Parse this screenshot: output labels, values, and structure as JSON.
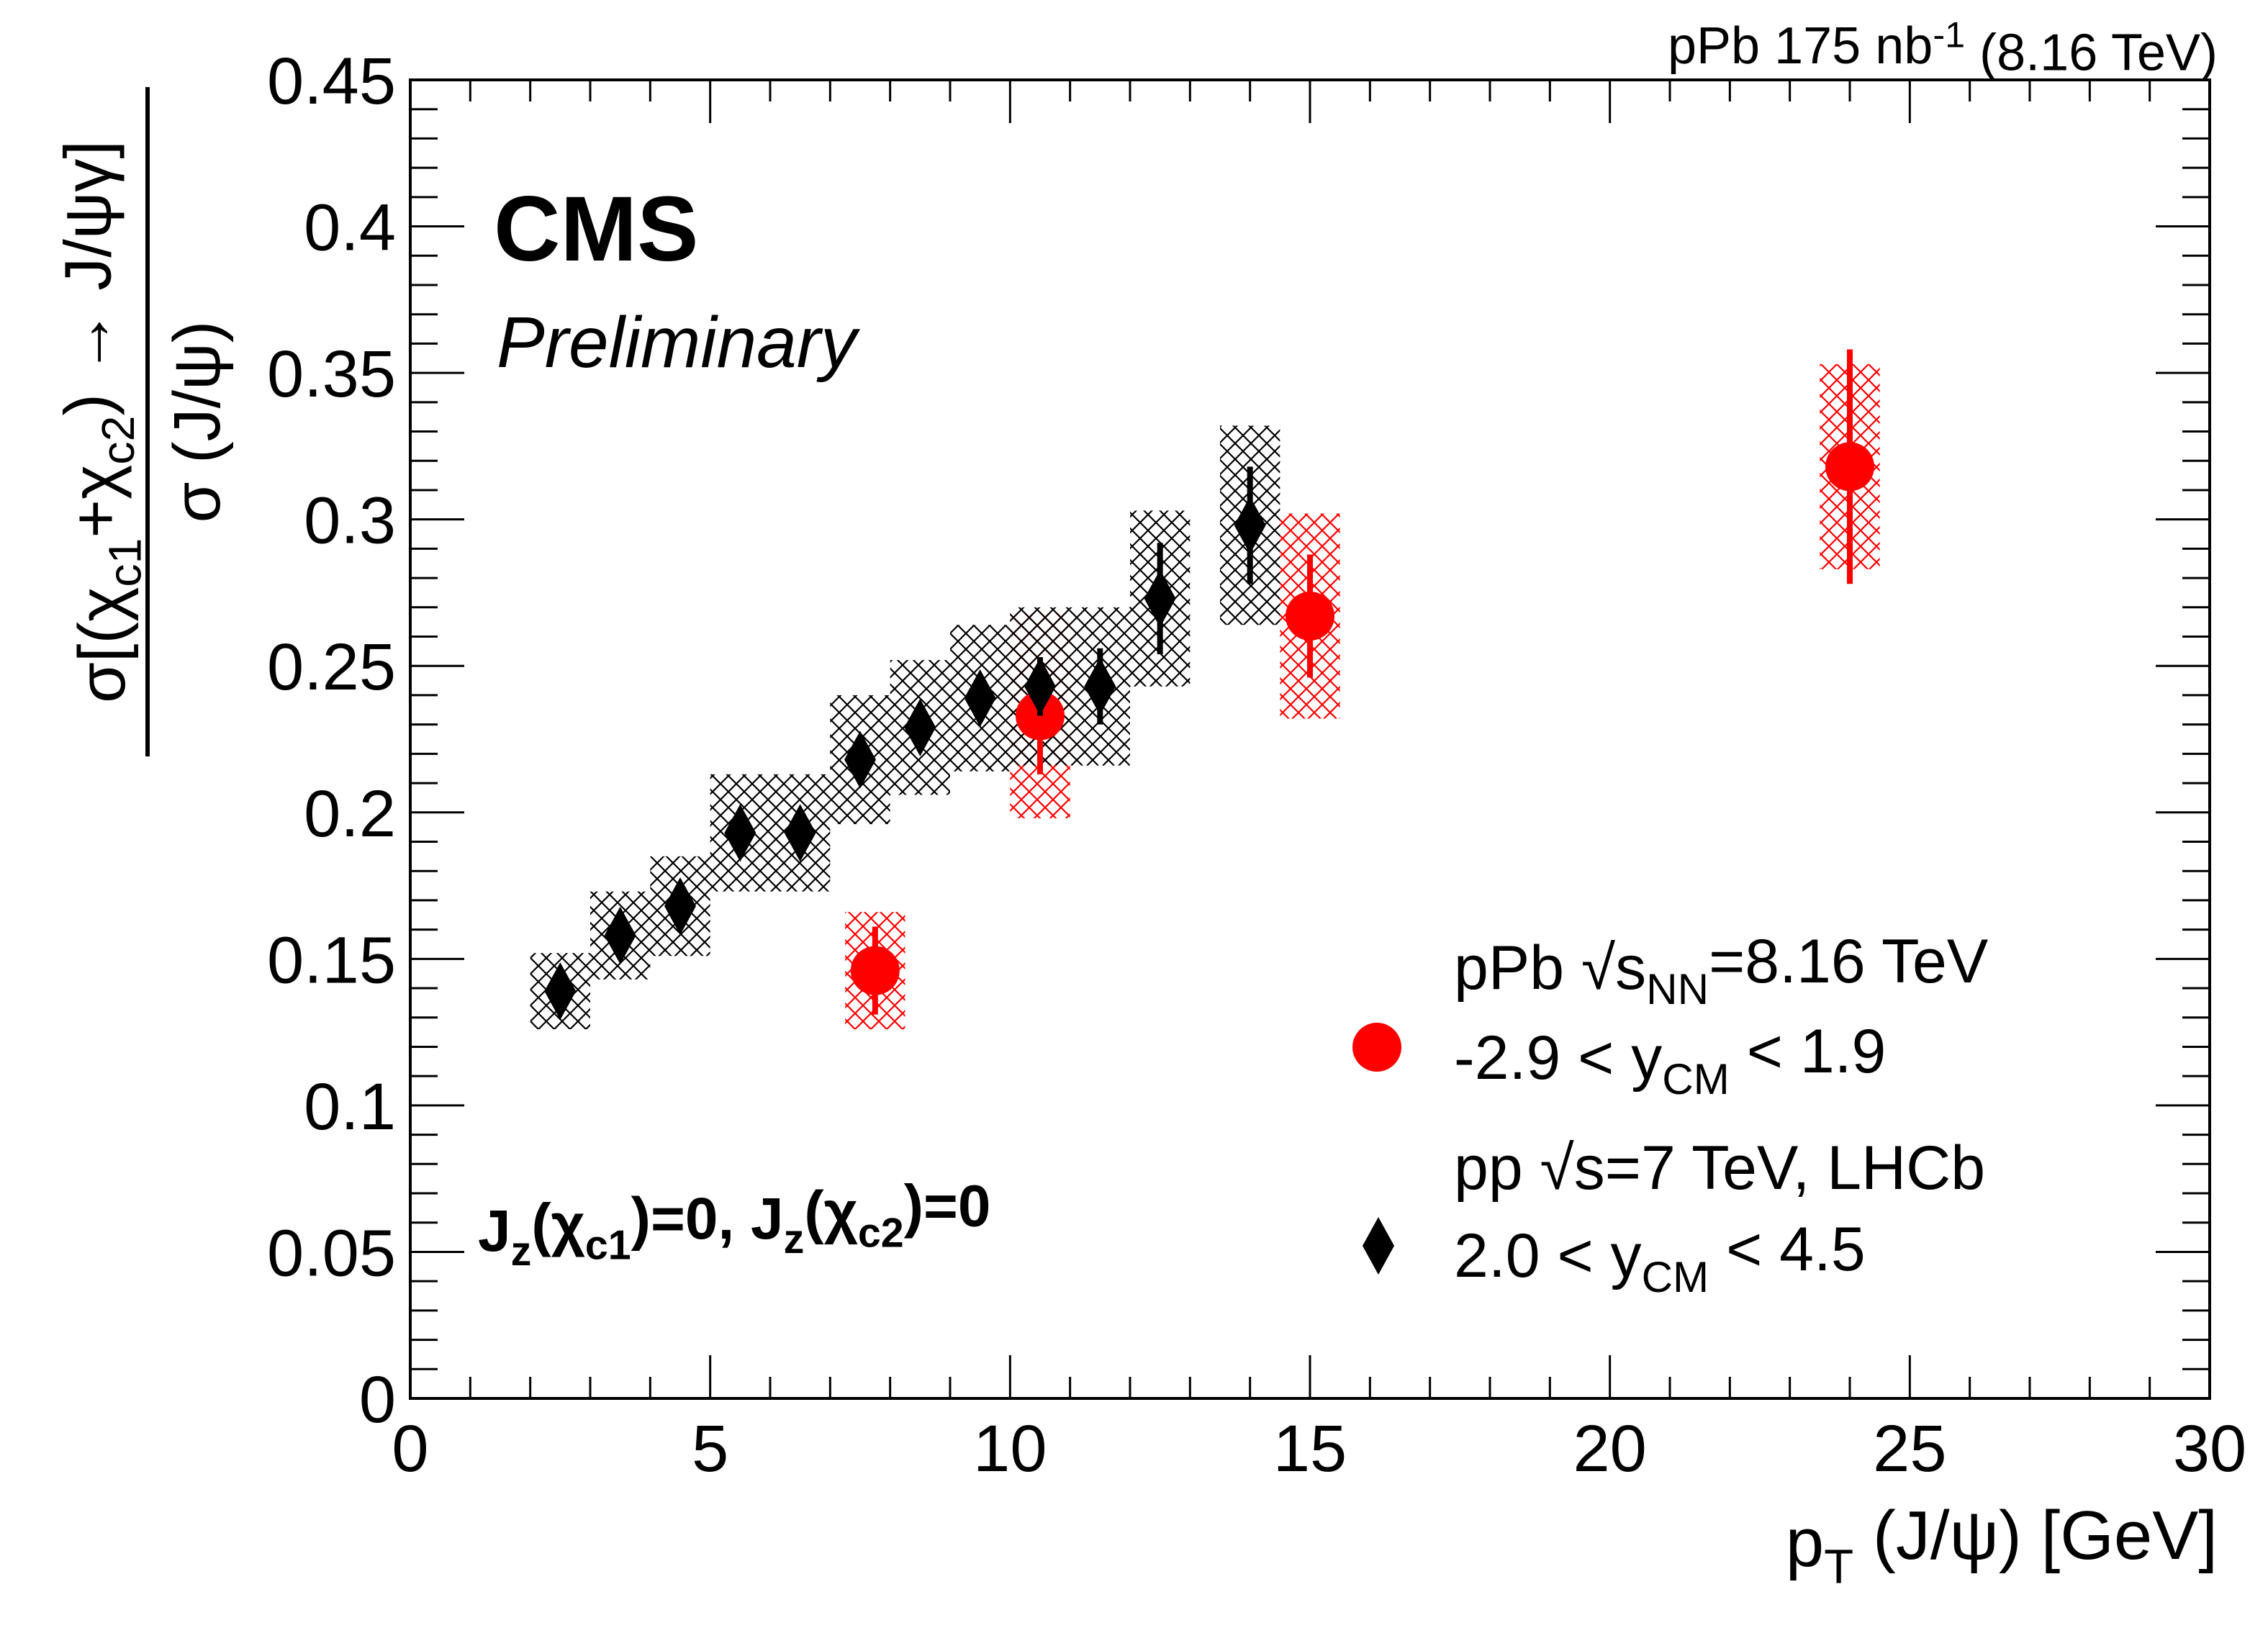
{
  "chart_data": {
    "type": "scatter",
    "lumi": [
      "pPb 175 nb",
      {
        "sup": "-1"
      },
      " (8.16 TeV)"
    ],
    "experiment": "CMS",
    "status": "Preliminary",
    "annotation": [
      "J",
      {
        "sub": "z"
      },
      "(χ",
      {
        "sub": "c1"
      },
      ")=0, J",
      {
        "sub": "z"
      },
      "(χ",
      {
        "sub": "c2"
      },
      ")=0"
    ],
    "xlabel": [
      "p",
      {
        "sub": "T"
      },
      " (J/ψ) [GeV]"
    ],
    "ylabel": {
      "numerator": [
        "σ[(χ",
        {
          "sub": "c1"
        },
        "+χ",
        {
          "sub": "c2"
        },
        ") → J/ψγ]"
      ],
      "denominator": [
        "σ (J/ψ)"
      ]
    },
    "xlim": [
      0,
      30
    ],
    "xticks": [
      0,
      5,
      10,
      15,
      20,
      25,
      30
    ],
    "ylim": [
      0,
      0.45
    ],
    "yticks": [
      0,
      0.05,
      0.1,
      0.15,
      0.2,
      0.25,
      0.3,
      0.35,
      0.4,
      0.45
    ],
    "series": [
      {
        "legend": [
          [
            "pPb √s",
            {
              "sub": "NN"
            },
            "=8.16 TeV"
          ],
          [
            "-2.9 < y",
            {
              "sub": "CM"
            },
            " < 1.9"
          ]
        ],
        "marker": "circle",
        "color": "#ff0000",
        "x": [
          7.75,
          10.5,
          15,
          24
        ],
        "values": [
          0.146,
          0.233,
          0.267,
          0.318
        ],
        "errors": [
          0.015,
          0.02,
          0.021,
          0.04
        ],
        "syst": [
          0.02,
          0.035,
          0.035,
          0.035
        ],
        "xerr": [
          0.5,
          0.5,
          0.5,
          0.5
        ]
      },
      {
        "legend": [
          [
            "pp  √s=7 TeV, LHCb"
          ],
          [
            "2.0 < y",
            {
              "sub": "CM"
            },
            " < 4.5"
          ]
        ],
        "marker": "diamond",
        "color": "#000000",
        "x": [
          2.5,
          3.5,
          4.5,
          5.5,
          6.5,
          7.5,
          8.5,
          9.5,
          10.5,
          11.5,
          12.5,
          14
        ],
        "values": [
          0.139,
          0.158,
          0.168,
          0.193,
          0.193,
          0.218,
          0.229,
          0.239,
          0.243,
          0.243,
          0.273,
          0.298
        ],
        "errors": [
          0.004,
          0.005,
          0.005,
          0.005,
          0.005,
          0.005,
          0.006,
          0.008,
          0.01,
          0.013,
          0.019,
          0.02
        ],
        "syst": [
          0.013,
          0.015,
          0.017,
          0.02,
          0.02,
          0.022,
          0.023,
          0.025,
          0.027,
          0.027,
          0.03,
          0.034
        ],
        "xerr": [
          0.5,
          0.5,
          0.5,
          0.5,
          0.5,
          0.5,
          0.5,
          0.5,
          0.5,
          0.5,
          0.5,
          0.5
        ]
      }
    ]
  }
}
